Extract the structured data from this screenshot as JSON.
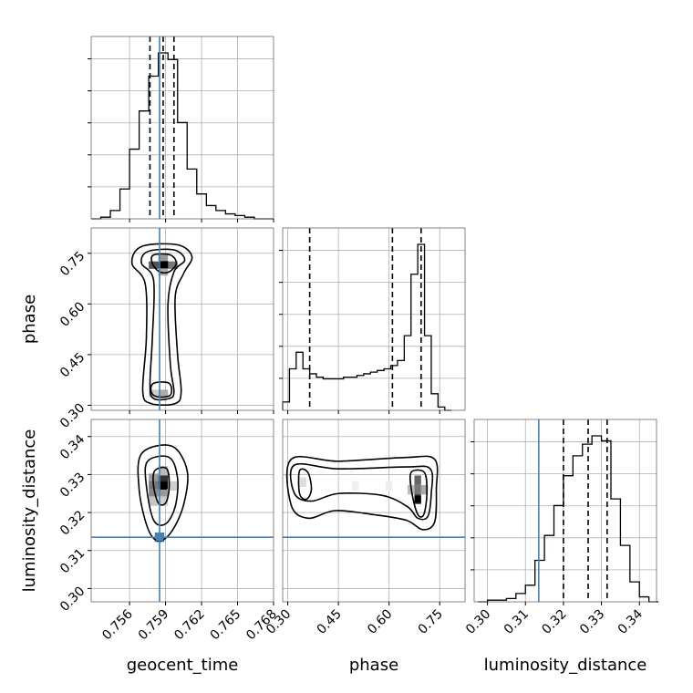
{
  "chart_data": {
    "type": "corner",
    "parameters": [
      "geocent_time",
      "phase",
      "luminosity_distance"
    ],
    "truths": {
      "geocent_time": 0.7585,
      "phase": null,
      "luminosity_distance": 0.3135
    },
    "quantiles": {
      "geocent_time": [
        0.7577,
        0.7588,
        0.7597
      ],
      "phase": [
        0.365,
        0.61,
        0.695
      ],
      "luminosity_distance": [
        0.32,
        0.3265,
        0.3315
      ]
    },
    "ranges": {
      "geocent_time": [
        0.7528,
        0.768
      ],
      "phase": [
        0.285,
        0.825
      ],
      "luminosity_distance": [
        0.2965,
        0.3445
      ]
    },
    "ticks": {
      "geocent_time": [
        "0.756",
        "0.759",
        "0.762",
        "0.765",
        "0.768"
      ],
      "phase": [
        "0.30",
        "0.45",
        "0.60",
        "0.75"
      ],
      "luminosity_distance": [
        "0.30",
        "0.31",
        "0.32",
        "0.33",
        "0.34"
      ]
    },
    "tick_values": {
      "geocent_time": [
        0.756,
        0.759,
        0.762,
        0.765,
        0.768
      ],
      "phase": [
        0.3,
        0.45,
        0.6,
        0.75
      ],
      "luminosity_distance": [
        0.3,
        0.31,
        0.32,
        0.33,
        0.34
      ]
    },
    "histograms": {
      "geocent_time": [
        [
          0.7528,
          0.0
        ],
        [
          0.7536,
          0.01
        ],
        [
          0.7544,
          0.05
        ],
        [
          0.7552,
          0.18
        ],
        [
          0.756,
          0.42
        ],
        [
          0.7568,
          0.65
        ],
        [
          0.7576,
          0.86
        ],
        [
          0.7584,
          1.0
        ],
        [
          0.7592,
          0.96
        ],
        [
          0.76,
          0.58
        ],
        [
          0.7608,
          0.3
        ],
        [
          0.7616,
          0.15
        ],
        [
          0.7624,
          0.08
        ],
        [
          0.7632,
          0.05
        ],
        [
          0.764,
          0.03
        ],
        [
          0.7648,
          0.02
        ],
        [
          0.7656,
          0.01
        ],
        [
          0.7664,
          0.0
        ],
        [
          0.7672,
          0.0
        ]
      ],
      "phase": [
        [
          0.285,
          0.05
        ],
        [
          0.305,
          0.25
        ],
        [
          0.325,
          0.35
        ],
        [
          0.345,
          0.25
        ],
        [
          0.365,
          0.22
        ],
        [
          0.385,
          0.2
        ],
        [
          0.405,
          0.19
        ],
        [
          0.425,
          0.19
        ],
        [
          0.445,
          0.19
        ],
        [
          0.465,
          0.2
        ],
        [
          0.485,
          0.2
        ],
        [
          0.505,
          0.21
        ],
        [
          0.525,
          0.22
        ],
        [
          0.545,
          0.23
        ],
        [
          0.565,
          0.24
        ],
        [
          0.585,
          0.25
        ],
        [
          0.605,
          0.27
        ],
        [
          0.625,
          0.3
        ],
        [
          0.645,
          0.45
        ],
        [
          0.665,
          0.82
        ],
        [
          0.685,
          1.0
        ],
        [
          0.705,
          0.45
        ],
        [
          0.725,
          0.1
        ],
        [
          0.745,
          0.02
        ],
        [
          0.765,
          0.0
        ]
      ],
      "luminosity_distance": [
        [
          0.2975,
          0.0
        ],
        [
          0.3,
          0.01
        ],
        [
          0.3025,
          0.01
        ],
        [
          0.305,
          0.02
        ],
        [
          0.3075,
          0.05
        ],
        [
          0.31,
          0.1
        ],
        [
          0.3125,
          0.25
        ],
        [
          0.315,
          0.4
        ],
        [
          0.3175,
          0.58
        ],
        [
          0.32,
          0.76
        ],
        [
          0.3225,
          0.88
        ],
        [
          0.325,
          0.95
        ],
        [
          0.3275,
          1.0
        ],
        [
          0.33,
          0.97
        ],
        [
          0.3325,
          0.62
        ],
        [
          0.335,
          0.34
        ],
        [
          0.3375,
          0.12
        ],
        [
          0.34,
          0.03
        ],
        [
          0.3425,
          0.0
        ]
      ]
    },
    "grid": true
  }
}
